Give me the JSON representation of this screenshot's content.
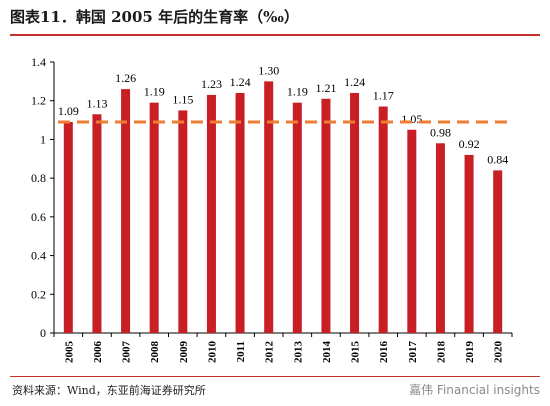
{
  "header": {
    "title": "图表11．韩国 2005 年后的生育率（‰）"
  },
  "footer": {
    "source": "资料来源：Wind，东亚前海证券研究所",
    "watermark": "嘉伟 Financial insights"
  },
  "chart_data": {
    "type": "bar",
    "categories": [
      "2005",
      "2006",
      "2007",
      "2008",
      "2009",
      "2010",
      "2011",
      "2012",
      "2013",
      "2014",
      "2015",
      "2016",
      "2017",
      "2018",
      "2019",
      "2020"
    ],
    "series": [
      {
        "values": [
          1.09,
          1.13,
          1.26,
          1.19,
          1.15,
          1.23,
          1.24,
          1.3,
          1.19,
          1.21,
          1.24,
          1.17,
          1.05,
          0.98,
          0.92,
          0.84
        ],
        "color": "#c81f25"
      }
    ],
    "data_labels": [
      "1.09",
      "1.13",
      "1.26",
      "1.19",
      "1.15",
      "1.23",
      "1.24",
      "1.30",
      "1.19",
      "1.21",
      "1.24",
      "1.17",
      "1.05",
      "0.98",
      "0.92",
      "0.84"
    ],
    "reference_line": {
      "value": 1.09,
      "color": "#ed7d31",
      "style": "dashed"
    },
    "ylim": [
      0,
      1.4
    ],
    "yticks": [
      0,
      0.2,
      0.4,
      0.6,
      0.8,
      1,
      1.2,
      1.4
    ],
    "ytick_labels": [
      "0",
      "0.2",
      "0.4",
      "0.6",
      "0.8",
      "1",
      "1.2",
      "1.4"
    ],
    "grid": false,
    "xlabel_rotation": "vertical"
  }
}
